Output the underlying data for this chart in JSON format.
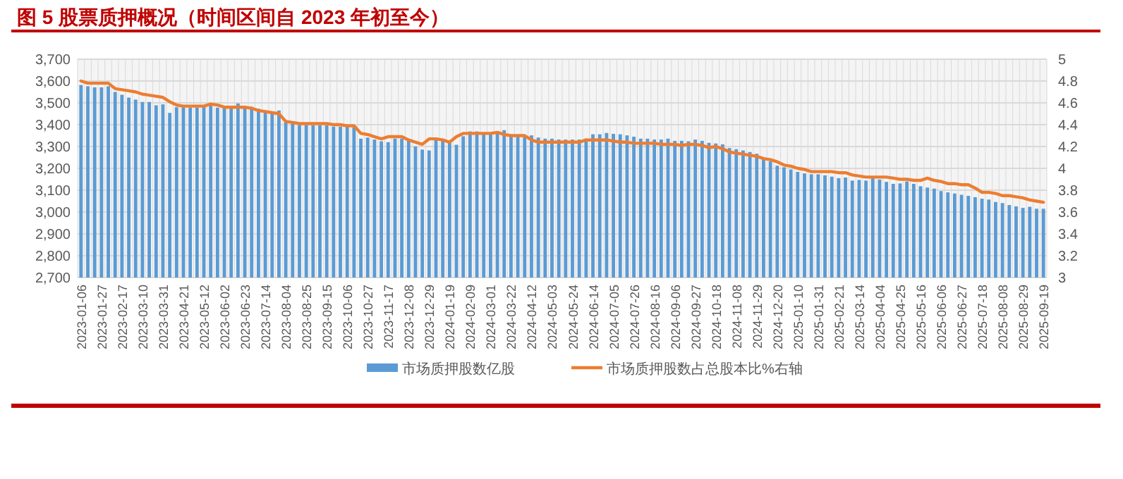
{
  "chart_data": {
    "type": "bar",
    "title": "图 5   股票质押概况（时间区间自 2023 年初至今）",
    "categories": [
      "2023-01-06",
      null,
      null,
      "2023-01-27",
      null,
      null,
      "2023-02-17",
      null,
      null,
      "2023-03-10",
      null,
      null,
      "2023-03-31",
      null,
      null,
      "2023-04-21",
      null,
      null,
      "2023-05-12",
      null,
      null,
      "2023-06-02",
      null,
      null,
      "2023-06-23",
      null,
      null,
      "2023-07-14",
      null,
      null,
      "2023-08-04",
      null,
      null,
      "2023-08-25",
      null,
      null,
      "2023-09-15",
      null,
      null,
      "2023-10-06",
      null,
      null,
      "2023-10-27",
      null,
      null,
      "2023-11-17",
      null,
      null,
      "2023-12-08",
      null,
      null,
      "2023-12-29",
      null,
      null,
      "2024-01-19",
      null,
      null,
      "2024-02-09",
      null,
      null,
      "2024-03-01",
      null,
      null,
      "2024-03-22",
      null,
      null,
      "2024-04-12",
      null,
      null,
      "2024-05-03",
      null,
      null,
      "2024-05-24",
      null,
      null,
      "2024-06-14",
      null,
      null,
      "2024-07-05",
      null,
      null,
      "2024-07-26",
      null,
      null,
      "2024-08-16",
      null,
      null,
      "2024-09-06",
      null,
      null,
      "2024-09-27",
      null,
      null,
      "2024-10-18",
      null,
      null,
      "2024-11-08",
      null,
      null,
      "2024-11-29",
      null,
      null,
      "2024-12-20",
      null,
      null,
      "2025-01-10",
      null,
      null,
      "2025-01-31",
      null,
      null,
      "2025-02-21",
      null,
      null,
      "2025-03-14",
      null,
      null,
      "2025-04-04",
      null,
      null,
      "2025-04-25",
      null,
      null,
      "2025-05-16",
      null,
      null,
      "2025-06-06",
      null,
      null,
      "2025-06-27",
      null,
      null,
      "2025-07-18",
      null,
      null,
      "2025-08-08",
      null,
      null,
      "2025-08-29",
      null,
      null,
      "2025-09-19"
    ],
    "series": [
      {
        "name": "市场质押股数亿股",
        "color": "#5b9bd5",
        "values": [
          3582,
          3576,
          3571,
          3571,
          3576,
          3550,
          3537,
          3524,
          3515,
          3504,
          3504,
          3489,
          3493,
          3454,
          3480,
          3480,
          3478,
          3478,
          3489,
          3487,
          3478,
          3476,
          3476,
          3497,
          3482,
          3482,
          3473,
          3465,
          3460,
          3465,
          3412,
          3404,
          3399,
          3399,
          3397,
          3397,
          3397,
          3391,
          3391,
          3391,
          3388,
          3336,
          3341,
          3332,
          3324,
          3320,
          3336,
          3336,
          3326,
          3300,
          3286,
          3282,
          3332,
          3326,
          3324,
          3308,
          3347,
          3369,
          3369,
          3362,
          3362,
          3362,
          3375,
          3351,
          3347,
          3347,
          3351,
          3341,
          3336,
          3336,
          3332,
          3332,
          3332,
          3332,
          3336,
          3356,
          3356,
          3362,
          3358,
          3356,
          3351,
          3345,
          3336,
          3336,
          3332,
          3332,
          3336,
          3326,
          3326,
          3324,
          3332,
          3326,
          3317,
          3314,
          3310,
          3293,
          3288,
          3282,
          3275,
          3267,
          3249,
          3232,
          3212,
          3205,
          3195,
          3184,
          3177,
          3173,
          3173,
          3168,
          3162,
          3155,
          3158,
          3144,
          3147,
          3144,
          3162,
          3149,
          3138,
          3129,
          3131,
          3140,
          3129,
          3118,
          3112,
          3107,
          3096,
          3090,
          3085,
          3079,
          3074,
          3068,
          3061,
          3057,
          3046,
          3041,
          3032,
          3026,
          3019,
          3024,
          3015,
          3015
        ]
      },
      {
        "name": "市场质押股数占总股本比%右轴",
        "type": "line",
        "axis": "y2",
        "color": "#ed7d31",
        "values": [
          4.8,
          4.78,
          4.78,
          4.78,
          4.78,
          4.73,
          4.72,
          4.71,
          4.7,
          4.68,
          4.67,
          4.66,
          4.65,
          4.61,
          4.58,
          4.57,
          4.57,
          4.57,
          4.57,
          4.59,
          4.58,
          4.56,
          4.56,
          4.56,
          4.56,
          4.55,
          4.53,
          4.52,
          4.51,
          4.5,
          4.43,
          4.42,
          4.41,
          4.41,
          4.41,
          4.41,
          4.41,
          4.4,
          4.4,
          4.39,
          4.39,
          4.32,
          4.31,
          4.29,
          4.27,
          4.29,
          4.29,
          4.29,
          4.26,
          4.24,
          4.22,
          4.27,
          4.27,
          4.26,
          4.24,
          4.29,
          4.32,
          4.32,
          4.32,
          4.32,
          4.32,
          4.33,
          4.31,
          4.3,
          4.3,
          4.3,
          4.26,
          4.24,
          4.24,
          4.24,
          4.24,
          4.24,
          4.24,
          4.24,
          4.26,
          4.26,
          4.26,
          4.26,
          4.25,
          4.24,
          4.24,
          4.23,
          4.23,
          4.23,
          4.23,
          4.22,
          4.22,
          4.22,
          4.21,
          4.22,
          4.22,
          4.21,
          4.19,
          4.2,
          4.18,
          4.15,
          4.14,
          4.13,
          4.12,
          4.11,
          4.09,
          4.08,
          4.06,
          4.03,
          4.02,
          4.0,
          3.99,
          3.97,
          3.97,
          3.97,
          3.97,
          3.96,
          3.96,
          3.94,
          3.93,
          3.92,
          3.92,
          3.92,
          3.92,
          3.91,
          3.9,
          3.9,
          3.89,
          3.89,
          3.91,
          3.89,
          3.88,
          3.86,
          3.86,
          3.85,
          3.85,
          3.82,
          3.78,
          3.78,
          3.77,
          3.75,
          3.75,
          3.74,
          3.73,
          3.71,
          3.7,
          3.69
        ]
      }
    ],
    "ylim": [
      2700,
      3700
    ],
    "yticks": [
      {
        "value": 2700,
        "label": "2,700"
      },
      {
        "value": 2800,
        "label": "2,800"
      },
      {
        "value": 2900,
        "label": "2,900"
      },
      {
        "value": 3000,
        "label": "3,000"
      },
      {
        "value": 3100,
        "label": "3,100"
      },
      {
        "value": 3200,
        "label": "3,200"
      },
      {
        "value": 3300,
        "label": "3,300"
      },
      {
        "value": 3400,
        "label": "3,400"
      },
      {
        "value": 3500,
        "label": "3,500"
      },
      {
        "value": 3600,
        "label": "3,600"
      },
      {
        "value": 3700,
        "label": "3,700"
      }
    ],
    "y2lim": [
      3,
      5
    ],
    "y2ticks": [
      3,
      3.2,
      3.4,
      3.6,
      3.8,
      4,
      4.2,
      4.4,
      4.6,
      4.8,
      5
    ],
    "grid": true,
    "legend": "bottom"
  }
}
